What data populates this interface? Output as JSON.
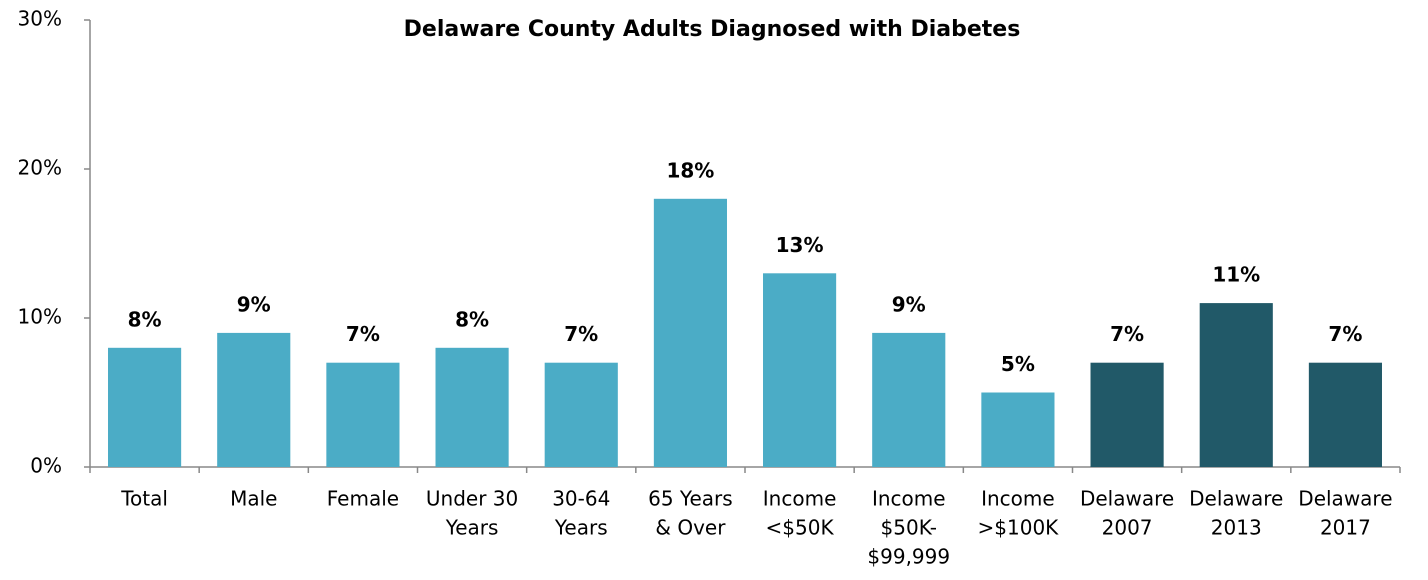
{
  "chart_data": {
    "type": "bar",
    "title": "Delaware County Adults Diagnosed with Diabetes",
    "categories": [
      [
        "Total"
      ],
      [
        "Male"
      ],
      [
        "Female"
      ],
      [
        "Under 30",
        "Years"
      ],
      [
        "30-64",
        "Years"
      ],
      [
        "65 Years",
        "& Over"
      ],
      [
        "Income",
        "<$50K"
      ],
      [
        "Income",
        "$50K-",
        "$99,999"
      ],
      [
        "Income",
        ">$100K"
      ],
      [
        "Delaware",
        "2007"
      ],
      [
        "Delaware",
        "2013"
      ],
      [
        "Delaware",
        "2017"
      ]
    ],
    "values": [
      8,
      9,
      7,
      8,
      7,
      18,
      13,
      9,
      5,
      7,
      11,
      7
    ],
    "value_labels": [
      "8%",
      "9%",
      "7%",
      "8%",
      "7%",
      "18%",
      "13%",
      "9%",
      "5%",
      "7%",
      "11%",
      "7%"
    ],
    "colors": [
      "#4bacc6",
      "#4bacc6",
      "#4bacc6",
      "#4bacc6",
      "#4bacc6",
      "#4bacc6",
      "#4bacc6",
      "#4bacc6",
      "#4bacc6",
      "#215968",
      "#215968",
      "#215968"
    ],
    "ylim": [
      0,
      30
    ],
    "yticks": [
      {
        "value": 0,
        "label": "0%"
      },
      {
        "value": 10,
        "label": "10%"
      },
      {
        "value": 20,
        "label": "20%"
      },
      {
        "value": 30,
        "label": "30%"
      }
    ],
    "grid": false
  }
}
